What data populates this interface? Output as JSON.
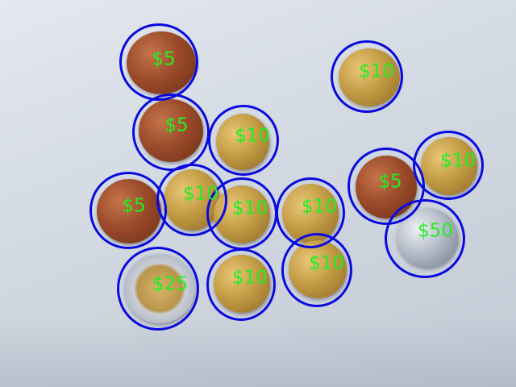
{
  "colors": {
    "ring": "#0a0ae0",
    "label": "#22ee22"
  },
  "coins": [
    {
      "label": "$5",
      "metal": "copper"
    },
    {
      "label": "$5",
      "metal": "copper"
    },
    {
      "label": "$10",
      "metal": "gold"
    },
    {
      "label": "$10",
      "metal": "gold"
    },
    {
      "label": "$5",
      "metal": "copper"
    },
    {
      "label": "$10",
      "metal": "gold"
    },
    {
      "label": "$10",
      "metal": "gold"
    },
    {
      "label": "$10",
      "metal": "gold"
    },
    {
      "label": "$5",
      "metal": "copper"
    },
    {
      "label": "$10",
      "metal": "gold"
    },
    {
      "label": "$50",
      "metal": "silver"
    },
    {
      "label": "$10",
      "metal": "gold"
    },
    {
      "label": "$25",
      "metal": "bimetal"
    },
    {
      "label": "$10",
      "metal": "gold"
    }
  ]
}
